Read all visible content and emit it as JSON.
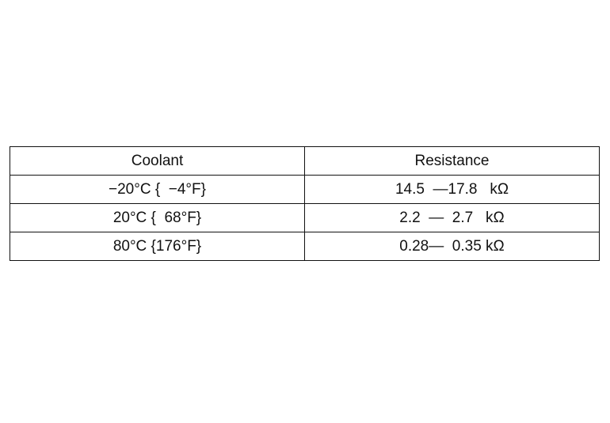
{
  "table": {
    "headers": [
      "Coolant",
      "Resistance"
    ],
    "rows": [
      [
        "−20°C {  −4°F}",
        "14.5  —17.8   kΩ"
      ],
      [
        "20°C {  68°F}",
        "2.2  —  2.7   kΩ"
      ],
      [
        "80°C {176°F}",
        "0.28—  0.35 kΩ"
      ]
    ]
  }
}
